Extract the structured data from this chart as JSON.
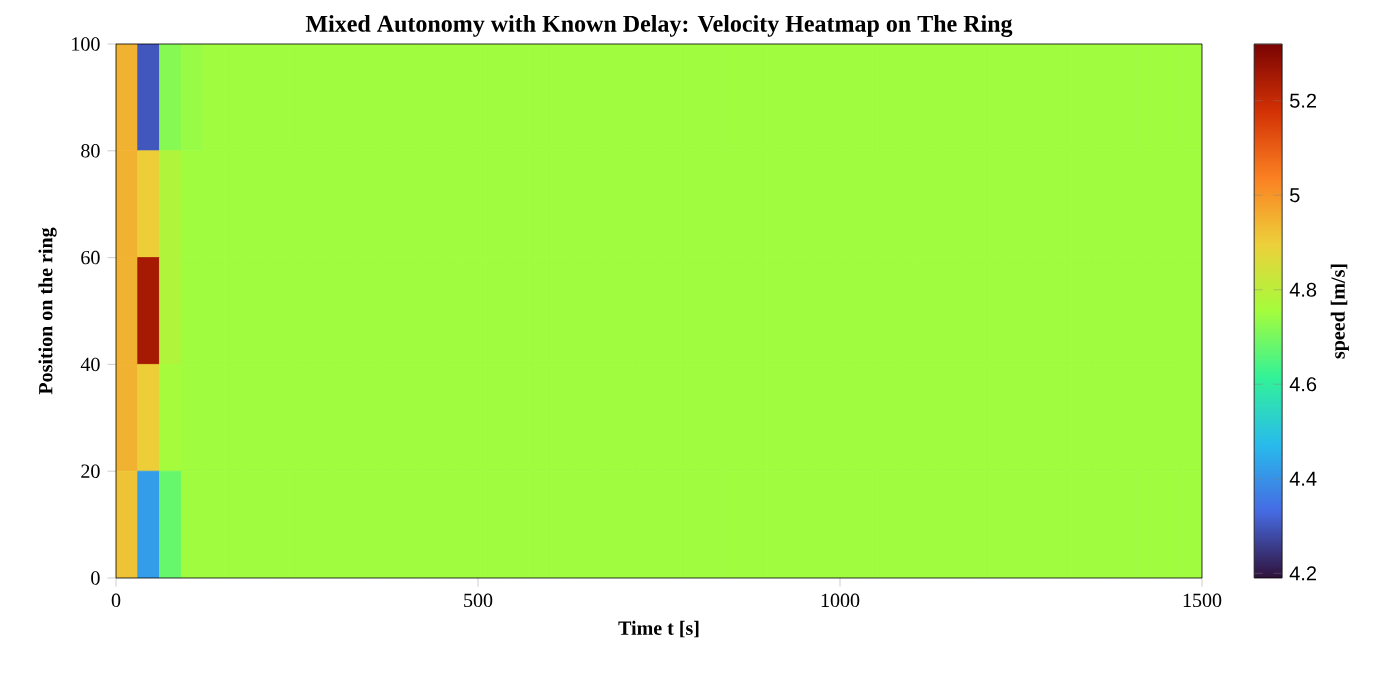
{
  "chart_data": {
    "type": "heatmap",
    "title": "Mixed Autonomy with Known Delay: Velocity Heatmap on The Ring",
    "xlabel": "Time t [s]",
    "ylabel": "Position on the ring",
    "clabel": "speed [m/s]",
    "x": [
      15,
      45,
      75,
      105,
      135,
      165,
      195,
      225,
      255,
      285,
      315,
      345,
      375,
      405,
      435,
      465,
      495,
      525,
      555,
      585,
      615,
      645,
      675,
      705,
      735,
      765,
      795,
      825,
      855,
      885,
      915,
      945,
      975,
      1005,
      1035,
      1065,
      1095,
      1125,
      1155,
      1185,
      1215,
      1245,
      1275,
      1305,
      1335,
      1365,
      1395,
      1425,
      1455,
      1485
    ],
    "y": [
      90,
      70,
      50,
      30,
      10
    ],
    "xlim": [
      0,
      1500
    ],
    "xticks": [
      0,
      500,
      1000,
      1500
    ],
    "ylim": [
      0,
      100
    ],
    "yticks": [
      0,
      20,
      40,
      60,
      80,
      100
    ],
    "clim": [
      4.19,
      5.32
    ],
    "cticks": [
      4.2,
      4.4,
      4.6,
      4.8,
      5,
      5.2
    ],
    "cells": [
      [
        4.95,
        4.3,
        4.72,
        4.74,
        4.75,
        4.75,
        4.75,
        4.75,
        4.75,
        4.75,
        4.75,
        4.75,
        4.75,
        4.75,
        4.75,
        4.75,
        4.75,
        4.75,
        4.75,
        4.75,
        4.75,
        4.75,
        4.75,
        4.75,
        4.75,
        4.75,
        4.75,
        4.75,
        4.75,
        4.75,
        4.75,
        4.75,
        4.75,
        4.75,
        4.75,
        4.75,
        4.75,
        4.75,
        4.75,
        4.75,
        4.75,
        4.75,
        4.75,
        4.75,
        4.75,
        4.75,
        4.75,
        4.75,
        4.75,
        4.75
      ],
      [
        4.95,
        4.9,
        4.78,
        4.75,
        4.75,
        4.75,
        4.75,
        4.75,
        4.75,
        4.75,
        4.75,
        4.75,
        4.75,
        4.75,
        4.75,
        4.75,
        4.75,
        4.75,
        4.75,
        4.75,
        4.75,
        4.75,
        4.75,
        4.75,
        4.75,
        4.75,
        4.75,
        4.75,
        4.75,
        4.75,
        4.75,
        4.75,
        4.75,
        4.75,
        4.75,
        4.75,
        4.75,
        4.75,
        4.75,
        4.75,
        4.75,
        4.75,
        4.75,
        4.75,
        4.75,
        4.75,
        4.75,
        4.75,
        4.75,
        4.75
      ],
      [
        4.95,
        5.25,
        4.78,
        4.75,
        4.75,
        4.75,
        4.75,
        4.75,
        4.75,
        4.75,
        4.75,
        4.75,
        4.75,
        4.75,
        4.75,
        4.75,
        4.75,
        4.75,
        4.75,
        4.75,
        4.75,
        4.75,
        4.75,
        4.75,
        4.75,
        4.75,
        4.75,
        4.75,
        4.75,
        4.75,
        4.75,
        4.75,
        4.75,
        4.75,
        4.75,
        4.75,
        4.75,
        4.75,
        4.75,
        4.75,
        4.75,
        4.75,
        4.75,
        4.75,
        4.75,
        4.75,
        4.75,
        4.75,
        4.75,
        4.75
      ],
      [
        4.95,
        4.9,
        4.76,
        4.75,
        4.75,
        4.75,
        4.75,
        4.75,
        4.75,
        4.75,
        4.75,
        4.75,
        4.75,
        4.75,
        4.75,
        4.75,
        4.75,
        4.75,
        4.75,
        4.75,
        4.75,
        4.75,
        4.75,
        4.75,
        4.75,
        4.75,
        4.75,
        4.75,
        4.75,
        4.75,
        4.75,
        4.75,
        4.75,
        4.75,
        4.75,
        4.75,
        4.75,
        4.75,
        4.75,
        4.75,
        4.75,
        4.75,
        4.75,
        4.75,
        4.75,
        4.75,
        4.75,
        4.75,
        4.75,
        4.75
      ],
      [
        4.92,
        4.42,
        4.68,
        4.75,
        4.75,
        4.75,
        4.75,
        4.75,
        4.75,
        4.75,
        4.75,
        4.75,
        4.75,
        4.75,
        4.75,
        4.75,
        4.75,
        4.75,
        4.75,
        4.75,
        4.75,
        4.75,
        4.75,
        4.75,
        4.75,
        4.75,
        4.75,
        4.75,
        4.75,
        4.75,
        4.75,
        4.75,
        4.75,
        4.75,
        4.75,
        4.75,
        4.75,
        4.75,
        4.75,
        4.75,
        4.75,
        4.75,
        4.75,
        4.75,
        4.75,
        4.75,
        4.75,
        4.75,
        4.75,
        4.75
      ]
    ]
  }
}
